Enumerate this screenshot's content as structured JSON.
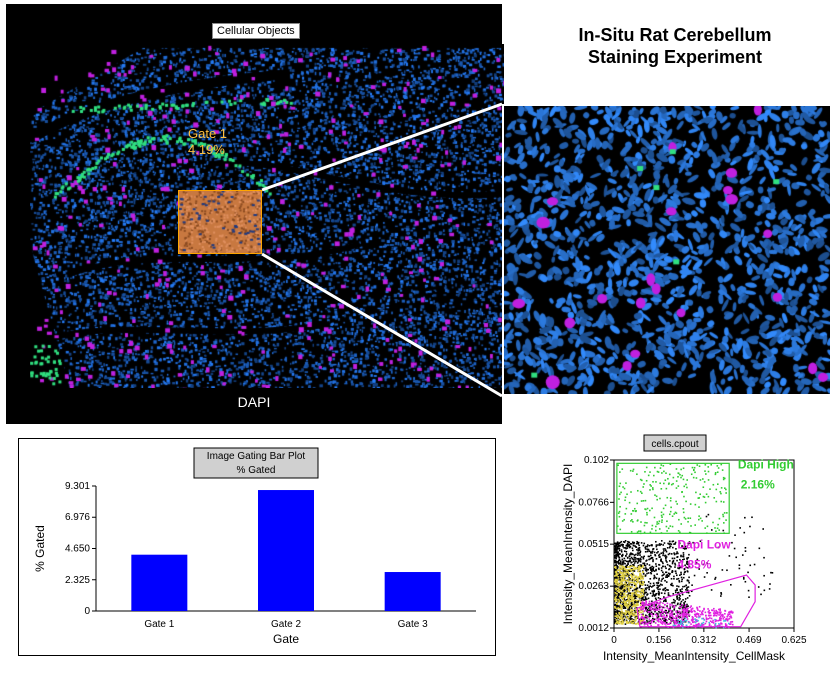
{
  "main_panel": {
    "caption": "Cellular Objects",
    "channel_label": "DAPI",
    "gate_name": "Gate 1",
    "gate_percent": "4.19%"
  },
  "title": {
    "line1": "In-Situ Rat Cerebellum",
    "line2": "Staining Experiment"
  },
  "colors": {
    "nuclei_blue": "#2a6fd6",
    "magenta": "#c020e0",
    "green": "#30e080",
    "gate_orange": "#ffa500",
    "bar_blue": "#0000ff",
    "dapi_high": "#33cc33",
    "dapi_low": "#e020e0"
  },
  "bar_chart": {
    "title_line1": "Image Gating Bar Plot",
    "title_line2": "% Gated"
  },
  "chart_data": [
    {
      "type": "bar",
      "title": "Image Gating Bar Plot % Gated",
      "categories": [
        "Gate 1",
        "Gate 2",
        "Gate 3"
      ],
      "values": [
        4.19,
        9.0,
        2.9
      ],
      "xlabel": "Gate",
      "ylabel": "% Gated",
      "yticks": [
        "0",
        "2.325",
        "4.650",
        "6.976",
        "9.301"
      ],
      "ylim": [
        0,
        9.301
      ],
      "grid": false
    },
    {
      "type": "scatter",
      "title": "cells.cpout",
      "xlabel": "Intensity_MeanIntensity_CellMask",
      "ylabel": "Intensity_MeanIntensity_DAPI",
      "xticks": [
        "0",
        "0.156",
        "0.312",
        "0.469",
        "0.625"
      ],
      "yticks": [
        "0.0012",
        "0.0263",
        "0.0515",
        "0.0766",
        "0.102"
      ],
      "xlim": [
        0,
        0.625
      ],
      "ylim": [
        0.0012,
        0.102
      ],
      "gates": [
        {
          "name": "Dapi High",
          "percent": "2.16%"
        },
        {
          "name": "Dapi Low",
          "percent": "4.85%"
        }
      ]
    }
  ]
}
